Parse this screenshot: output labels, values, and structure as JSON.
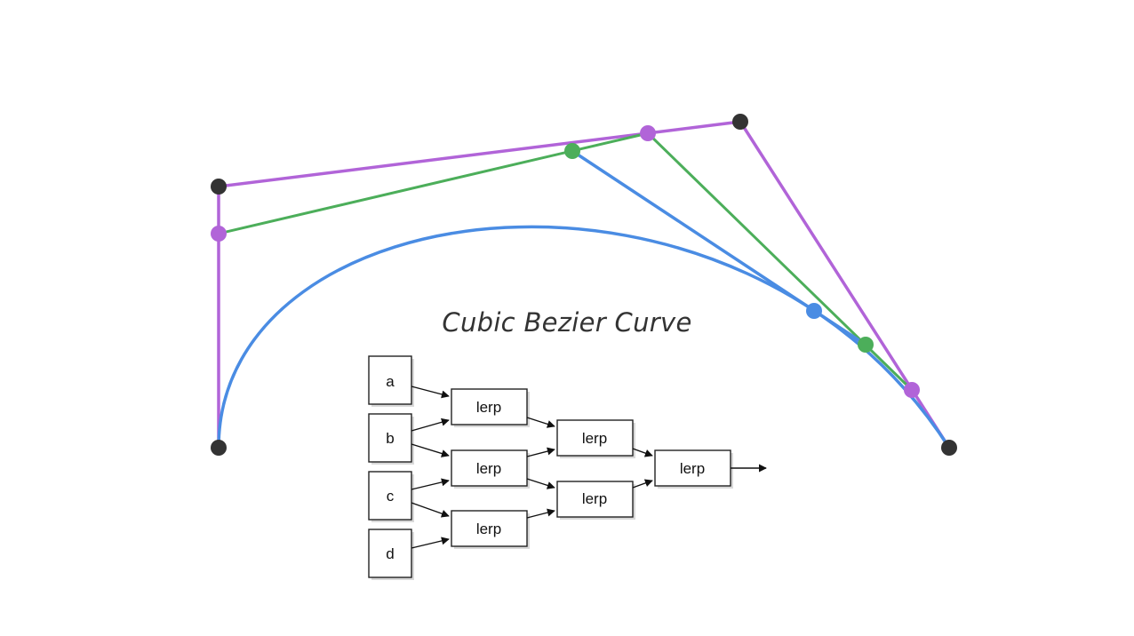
{
  "title": "Cubic Bezier Curve",
  "colors": {
    "control_polygon": "#b164d8",
    "second_level": "#4cae5a",
    "curve": "#4a8ce3",
    "control_point": "#333333",
    "title_text": "#333333"
  },
  "diagram": {
    "inputs": [
      "a",
      "b",
      "c",
      "d"
    ],
    "lerp_label": "lerp",
    "lerp_count": 6
  }
}
